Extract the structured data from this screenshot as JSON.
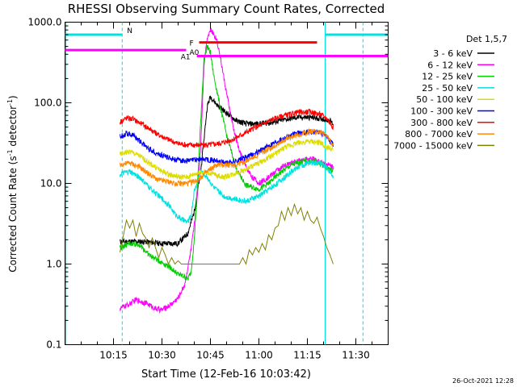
{
  "chart_data": {
    "type": "line",
    "title": "RHESSI Observing Summary Count Rates, Corrected",
    "xlabel": "Start Time (12-Feb-16 10:03:42)",
    "ylabel_main": "Corrected Count Rate (s",
    "ylabel_sup1": "-1",
    "ylabel_mid": " detector",
    "ylabel_sup2": "-1",
    "ylabel_end": ")",
    "yscale": "log",
    "ylim": [
      0.1,
      1000
    ],
    "xlim_minutes": [
      "10:03:42",
      "11:43:42"
    ],
    "y_ticks": [
      "1000.0",
      "100.0",
      "10.0",
      "1.0",
      "0.1"
    ],
    "y_tick_values": [
      1000,
      100,
      10,
      1,
      0.1
    ],
    "x_ticks": [
      "10:15",
      "10:30",
      "10:45",
      "11:00",
      "11:15",
      "11:30"
    ],
    "x_tick_values": [
      15,
      30,
      45,
      60,
      75,
      90
    ],
    "legend_title": "Det 1,5,7",
    "legend_placement": "right",
    "timestamp": "26-Oct-2021 12:28",
    "series": [
      {
        "name": "3 - 6 keV",
        "color": "#000000",
        "points": [
          [
            17,
            1.9
          ],
          [
            24,
            1.9
          ],
          [
            30,
            1.8
          ],
          [
            35,
            1.8
          ],
          [
            38,
            2.4
          ],
          [
            40,
            4.5
          ],
          [
            41,
            8
          ],
          [
            42,
            14
          ],
          [
            43,
            35
          ],
          [
            44,
            90
          ],
          [
            45,
            120
          ],
          [
            47,
            95
          ],
          [
            50,
            75
          ],
          [
            53,
            60
          ],
          [
            56,
            55
          ],
          [
            60,
            55
          ],
          [
            64,
            57
          ],
          [
            68,
            62
          ],
          [
            72,
            66
          ],
          [
            76,
            66
          ],
          [
            80,
            63
          ],
          [
            82,
            60
          ],
          [
            83,
            55
          ]
        ]
      },
      {
        "name": "6 - 12 keV",
        "color": "#ff00ff",
        "points": [
          [
            17,
            0.28
          ],
          [
            20,
            0.32
          ],
          [
            22,
            0.36
          ],
          [
            25,
            0.33
          ],
          [
            28,
            0.28
          ],
          [
            30,
            0.27
          ],
          [
            33,
            0.32
          ],
          [
            35,
            0.38
          ],
          [
            37,
            0.55
          ],
          [
            38,
            0.9
          ],
          [
            39,
            1.5
          ],
          [
            40,
            3
          ],
          [
            41,
            7
          ],
          [
            42,
            30
          ],
          [
            43,
            300
          ],
          [
            44,
            650
          ],
          [
            45,
            800
          ],
          [
            46,
            720
          ],
          [
            47,
            600
          ],
          [
            48,
            380
          ],
          [
            50,
            130
          ],
          [
            52,
            50
          ],
          [
            54,
            25
          ],
          [
            56,
            16
          ],
          [
            58,
            12
          ],
          [
            60,
            10
          ],
          [
            63,
            12
          ],
          [
            66,
            15
          ],
          [
            70,
            18
          ],
          [
            74,
            20
          ],
          [
            77,
            20
          ],
          [
            80,
            18
          ],
          [
            83,
            16
          ]
        ]
      },
      {
        "name": "12 - 25 keV",
        "color": "#00cc00",
        "points": [
          [
            17,
            1.6
          ],
          [
            20,
            1.8
          ],
          [
            23,
            1.75
          ],
          [
            26,
            1.3
          ],
          [
            29,
            1.1
          ],
          [
            32,
            0.95
          ],
          [
            35,
            0.75
          ],
          [
            37,
            0.7
          ],
          [
            38,
            0.65
          ],
          [
            39,
            0.8
          ],
          [
            40,
            2
          ],
          [
            41,
            10
          ],
          [
            42,
            60
          ],
          [
            43,
            350
          ],
          [
            44,
            500
          ],
          [
            45,
            420
          ],
          [
            46,
            220
          ],
          [
            48,
            90
          ],
          [
            50,
            40
          ],
          [
            53,
            15
          ],
          [
            56,
            9.5
          ],
          [
            58,
            9
          ],
          [
            60,
            8.5
          ],
          [
            63,
            10
          ],
          [
            66,
            13
          ],
          [
            70,
            17
          ],
          [
            74,
            19
          ],
          [
            77,
            19
          ],
          [
            80,
            17
          ],
          [
            83,
            14
          ]
        ]
      },
      {
        "name": "25 - 50 keV",
        "color": "#00e0e0",
        "points": [
          [
            17,
            13
          ],
          [
            20,
            14
          ],
          [
            23,
            12
          ],
          [
            26,
            9
          ],
          [
            29,
            7
          ],
          [
            32,
            5.5
          ],
          [
            34,
            4.2
          ],
          [
            36,
            3.6
          ],
          [
            38,
            3.3
          ],
          [
            39,
            4
          ],
          [
            40,
            8
          ],
          [
            42,
            14
          ],
          [
            44,
            12
          ],
          [
            46,
            9
          ],
          [
            49,
            7
          ],
          [
            52,
            6.5
          ],
          [
            56,
            6
          ],
          [
            60,
            7
          ],
          [
            64,
            9
          ],
          [
            68,
            12
          ],
          [
            72,
            16
          ],
          [
            76,
            18
          ],
          [
            79,
            18
          ],
          [
            81,
            16
          ],
          [
            83,
            12
          ]
        ]
      },
      {
        "name": "50 - 100 keV",
        "color": "#dddd00",
        "points": [
          [
            17,
            23
          ],
          [
            20,
            25
          ],
          [
            23,
            22
          ],
          [
            26,
            18
          ],
          [
            29,
            15
          ],
          [
            32,
            13
          ],
          [
            35,
            12
          ],
          [
            38,
            12
          ],
          [
            40,
            13
          ],
          [
            43,
            14
          ],
          [
            46,
            13
          ],
          [
            49,
            12
          ],
          [
            52,
            13
          ],
          [
            56,
            15
          ],
          [
            60,
            18
          ],
          [
            64,
            22
          ],
          [
            68,
            28
          ],
          [
            72,
            32
          ],
          [
            76,
            33
          ],
          [
            79,
            32
          ],
          [
            81,
            28
          ],
          [
            83,
            26
          ]
        ]
      },
      {
        "name": "100 - 300 keV",
        "color": "#0000ff",
        "points": [
          [
            17,
            38
          ],
          [
            19,
            42
          ],
          [
            21,
            40
          ],
          [
            23,
            34
          ],
          [
            26,
            27
          ],
          [
            29,
            23
          ],
          [
            32,
            21
          ],
          [
            35,
            19.5
          ],
          [
            38,
            19
          ],
          [
            41,
            20
          ],
          [
            44,
            20
          ],
          [
            47,
            19
          ],
          [
            50,
            18
          ],
          [
            53,
            19
          ],
          [
            56,
            21
          ],
          [
            60,
            25
          ],
          [
            64,
            31
          ],
          [
            68,
            37
          ],
          [
            72,
            42
          ],
          [
            76,
            44
          ],
          [
            79,
            43
          ],
          [
            81,
            38
          ],
          [
            83,
            30
          ]
        ]
      },
      {
        "name": "300 - 800 keV",
        "color": "#ff0000",
        "points": [
          [
            17,
            58
          ],
          [
            19,
            65
          ],
          [
            21,
            63
          ],
          [
            23,
            57
          ],
          [
            26,
            48
          ],
          [
            29,
            40
          ],
          [
            32,
            35
          ],
          [
            35,
            31
          ],
          [
            38,
            30
          ],
          [
            41,
            30
          ],
          [
            44,
            30
          ],
          [
            47,
            31
          ],
          [
            50,
            33
          ],
          [
            53,
            37
          ],
          [
            56,
            43
          ],
          [
            60,
            52
          ],
          [
            64,
            62
          ],
          [
            68,
            70
          ],
          [
            72,
            76
          ],
          [
            76,
            77
          ],
          [
            79,
            72
          ],
          [
            81,
            64
          ],
          [
            83,
            50
          ]
        ]
      },
      {
        "name": "800 - 7000 keV",
        "color": "#ff8800",
        "points": [
          [
            17,
            17
          ],
          [
            20,
            18
          ],
          [
            23,
            16
          ],
          [
            26,
            13
          ],
          [
            29,
            11
          ],
          [
            32,
            10.5
          ],
          [
            35,
            10
          ],
          [
            38,
            10
          ],
          [
            41,
            11
          ],
          [
            44,
            14
          ],
          [
            47,
            17
          ],
          [
            50,
            17
          ],
          [
            53,
            17
          ],
          [
            56,
            19
          ],
          [
            60,
            23
          ],
          [
            64,
            28
          ],
          [
            68,
            35
          ],
          [
            72,
            40
          ],
          [
            76,
            44
          ],
          [
            79,
            43
          ],
          [
            81,
            39
          ],
          [
            83,
            30
          ]
        ]
      },
      {
        "name": "7000 - 15000 keV",
        "color": "#808000",
        "points": [
          [
            17,
            1.4
          ],
          [
            18,
            2.2
          ],
          [
            19,
            3.5
          ],
          [
            20,
            2.8
          ],
          [
            21,
            3.5
          ],
          [
            22,
            2.2
          ],
          [
            23,
            3.2
          ],
          [
            24,
            2.4
          ],
          [
            25,
            2.1
          ],
          [
            26,
            1.6
          ],
          [
            27,
            2.1
          ],
          [
            28,
            1.6
          ],
          [
            29,
            1.2
          ],
          [
            30,
            1.6
          ],
          [
            31,
            1.3
          ],
          [
            32,
            1.0
          ],
          [
            33,
            1.2
          ],
          [
            34,
            1.0
          ],
          [
            35,
            1.1
          ],
          [
            36,
            1.0
          ],
          [
            37,
            1.0
          ],
          [
            38,
            1.0
          ],
          [
            40,
            1.0
          ],
          [
            50,
            1.0
          ],
          [
            54,
            1.0
          ],
          [
            55,
            1.2
          ],
          [
            56,
            1.0
          ],
          [
            57,
            1.5
          ],
          [
            58,
            1.3
          ],
          [
            59,
            1.6
          ],
          [
            60,
            1.4
          ],
          [
            61,
            1.8
          ],
          [
            62,
            1.5
          ],
          [
            63,
            2.3
          ],
          [
            64,
            2.0
          ],
          [
            65,
            2.8
          ],
          [
            66,
            3.0
          ],
          [
            67,
            4.5
          ],
          [
            68,
            3.5
          ],
          [
            69,
            5.0
          ],
          [
            70,
            4.0
          ],
          [
            71,
            5.5
          ],
          [
            72,
            4.2
          ],
          [
            73,
            5.0
          ],
          [
            74,
            3.5
          ],
          [
            75,
            4.5
          ],
          [
            76,
            3.5
          ],
          [
            77,
            3.2
          ],
          [
            78,
            3.8
          ],
          [
            79,
            2.8
          ],
          [
            80,
            2.2
          ],
          [
            81,
            1.6
          ],
          [
            82,
            1.3
          ],
          [
            83,
            1.0
          ]
        ]
      }
    ],
    "bars": [
      {
        "label": "N",
        "color": "#00e0e0",
        "y": 700,
        "segments": [
          [
            0,
            17.7
          ],
          [
            80.5,
            100
          ]
        ]
      },
      {
        "label": "F",
        "color": "#ff0000",
        "y": 560,
        "segments": [
          [
            41.5,
            78
          ]
        ]
      },
      {
        "label": "A0",
        "color": "#ff00ff",
        "y": 450,
        "segments": [
          [
            0,
            37.5
          ]
        ]
      },
      {
        "label": "A1",
        "color": "#ff00ff",
        "y": 380,
        "segments": [
          [
            40.8,
            100
          ]
        ]
      }
    ],
    "vlines": [
      {
        "minute": 0.3,
        "style": "solid",
        "color": "#00e0e0"
      },
      {
        "minute": 17.7,
        "style": "dashed",
        "color": "#00e0e0"
      },
      {
        "minute": 80.5,
        "style": "solid",
        "color": "#00e0e0"
      },
      {
        "minute": 92.2,
        "style": "dashed",
        "color": "#00e0e0"
      }
    ]
  }
}
